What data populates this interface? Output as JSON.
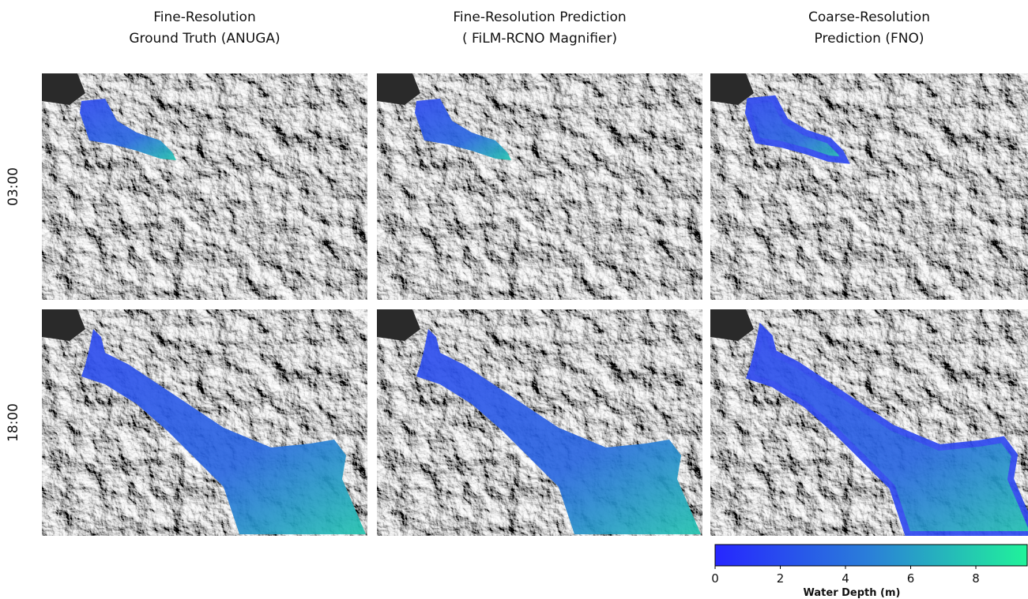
{
  "columns": [
    {
      "title_line1": "Fine-Resolution",
      "title_line2": "Ground Truth (ANUGA)"
    },
    {
      "title_line1": "Fine-Resolution Prediction",
      "title_line2": "( FiLM-RCNO Magnifier)"
    },
    {
      "title_line1": "Coarse-Resolution",
      "title_line2": "Prediction (FNO)"
    }
  ],
  "rows": [
    "03:00",
    "18:00"
  ],
  "colorbar": {
    "label": "Water Depth (m)",
    "lim": [
      0,
      9.6
    ],
    "ticks": [
      0,
      2,
      4,
      6,
      8
    ]
  }
}
